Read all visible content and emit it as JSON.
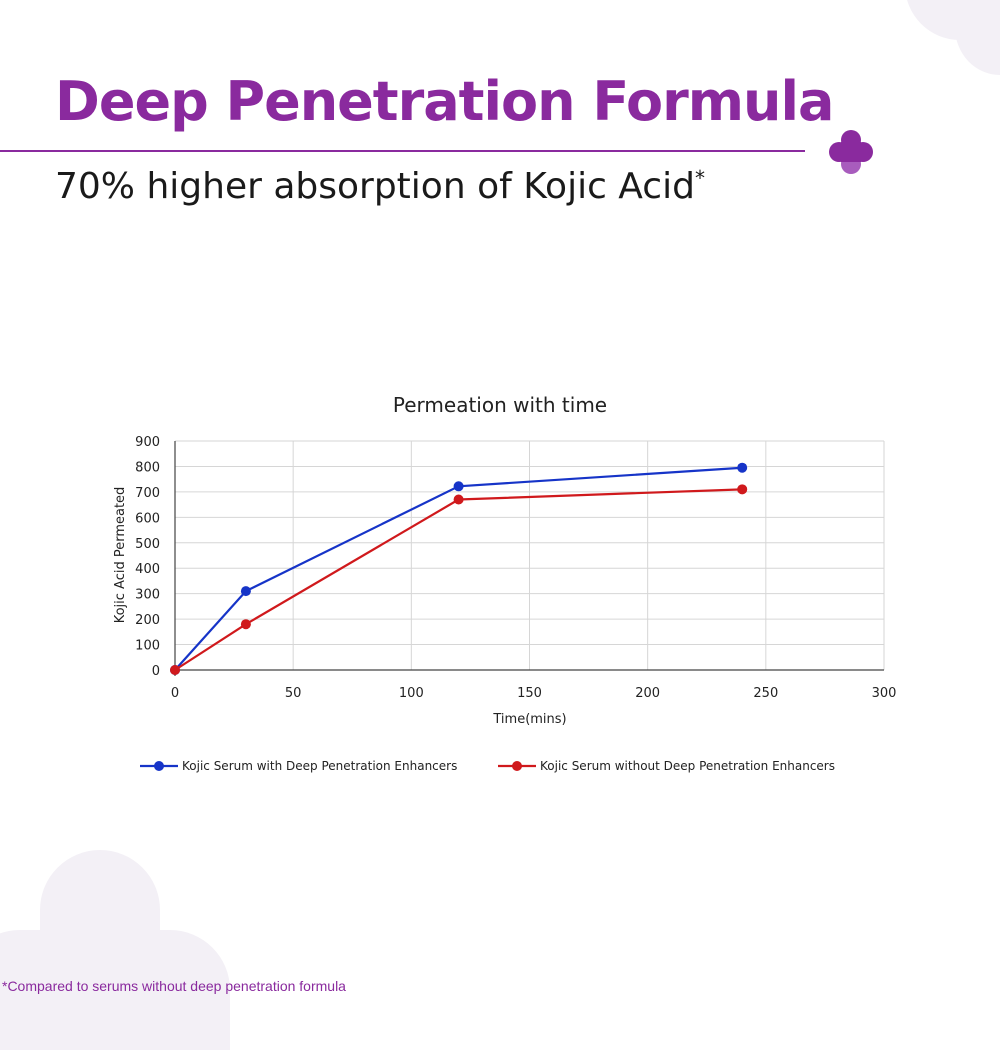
{
  "header": {
    "title": "Deep Penetration Formula",
    "subtitle": "70% higher absorption of Kojic Acid",
    "subtitle_mark": "*"
  },
  "footnote": "*Compared to serums without deep penetration formula",
  "colors": {
    "brand": "#8a2a9e",
    "series_with": "#1634c8",
    "series_without": "#d0191c"
  },
  "chart_data": {
    "type": "line",
    "title": "Permeation with time",
    "xlabel": "Time(mins)",
    "ylabel": "Kojic Acid Permeated",
    "xlim": [
      0,
      300
    ],
    "ylim": [
      0,
      900
    ],
    "xticks": [
      "0",
      "50",
      "100",
      "150",
      "200",
      "250",
      "300"
    ],
    "yticks": [
      "0",
      "100",
      "200",
      "300",
      "400",
      "500",
      "600",
      "700",
      "800",
      "900"
    ],
    "grid": true,
    "legend": "bottom",
    "series": [
      {
        "name": "Kojic Serum with Deep Penetration Enhancers",
        "color": "#1634c8",
        "x": [
          0,
          30,
          120,
          240
        ],
        "y": [
          0,
          310,
          722,
          795
        ]
      },
      {
        "name": "Kojic Serum without Deep Penetration Enhancers",
        "color": "#d0191c",
        "x": [
          0,
          30,
          120,
          240
        ],
        "y": [
          0,
          180,
          670,
          710
        ]
      }
    ]
  }
}
